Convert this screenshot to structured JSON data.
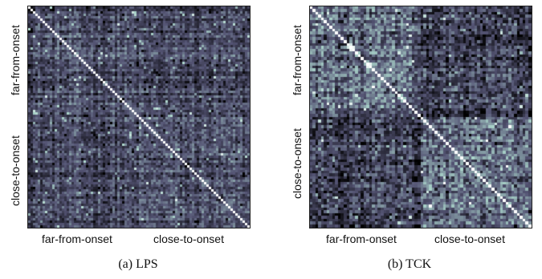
{
  "chart_data": [
    {
      "type": "heatmap",
      "caption": "(a)  LPS",
      "x_tick_labels": [
        "far-from-onset",
        "close-to-onset"
      ],
      "y_tick_labels": [
        "far-from-onset",
        "close-to-onset"
      ],
      "grid": false,
      "colormap": "bone",
      "diagonal_value": "max"
    },
    {
      "type": "heatmap",
      "caption": "(b)  TCK",
      "x_tick_labels": [
        "far-from-onset",
        "close-to-onset"
      ],
      "y_tick_labels": [
        "far-from-onset",
        "close-to-onset"
      ],
      "grid": false,
      "colormap": "bone",
      "diagonal_value": "max"
    }
  ]
}
